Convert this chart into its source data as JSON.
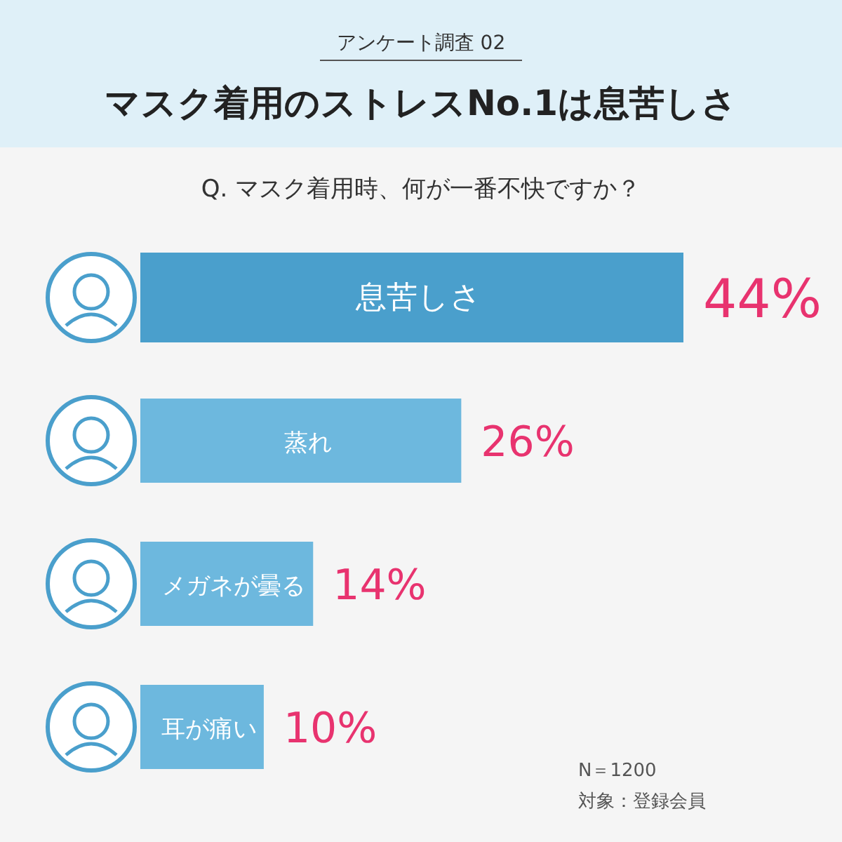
{
  "chart_data": {
    "type": "bar",
    "orientation": "horizontal",
    "title": "マスク着用のストレスNo.1は息苦しさ",
    "subtitle": "Q. マスク着用時、何が一番不快ですか？",
    "annotations": [
      "アンケート調査 02",
      "N＝1200",
      "対象：登録会員"
    ],
    "categories": [
      "息苦しさ",
      "蒸れ",
      "メガネが曇る",
      "耳が痛い"
    ],
    "values": [
      44,
      26,
      14,
      10
    ],
    "colors": [
      "#4a9fcc",
      "#6db8de",
      "#6db8de",
      "#6db8de"
    ],
    "value_labels": [
      "44%",
      "26%",
      "14%",
      "10%"
    ]
  }
}
